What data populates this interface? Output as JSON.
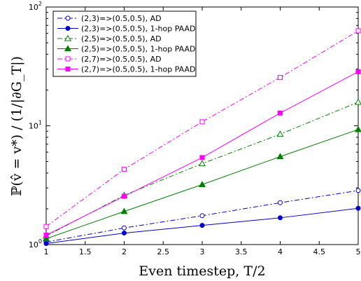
{
  "chart_data": {
    "type": "line",
    "title": "",
    "xlabel": "Even timestep, T/2",
    "ylabel": "ℙ(v̂ = v*)  / (1/|∂G_T|)",
    "xlim": [
      1,
      5
    ],
    "ylim": [
      1,
      100
    ],
    "yscale": "log",
    "grid": false,
    "legend_position": "top-left",
    "x_ticks": [
      "1",
      "1.5",
      "2",
      "2.5",
      "3",
      "3.5",
      "4",
      "4.5",
      "5"
    ],
    "y_tick_labels": [
      {
        "value": 1,
        "base": "10",
        "exp": "0"
      },
      {
        "value": 10,
        "base": "10",
        "exp": "1"
      },
      {
        "value": 100,
        "base": "10",
        "exp": "2"
      }
    ],
    "x": [
      1,
      2,
      3,
      4,
      5
    ],
    "series": [
      {
        "name": "(2,3)=>(0.5,0.5), AD",
        "color": "#0000cc",
        "dash": "dashdot",
        "marker": "circle-open",
        "values": [
          1.05,
          1.38,
          1.75,
          2.25,
          2.85
        ]
      },
      {
        "name": "(2,3)=>(0.5,0.5), 1-hop PAAD",
        "color": "#0000cc",
        "dash": "solid",
        "marker": "circle-filled",
        "values": [
          1.02,
          1.25,
          1.45,
          1.68,
          2.02
        ]
      },
      {
        "name": "(2,5)=>(0.5,0.5), AD",
        "color": "#008000",
        "dash": "dashdot",
        "marker": "triangle-open",
        "values": [
          1.18,
          2.6,
          4.8,
          8.5,
          15.8
        ]
      },
      {
        "name": "(2,5)=>(0.5,0.5), 1-hop PAAD",
        "color": "#008000",
        "dash": "solid",
        "marker": "triangle-filled",
        "values": [
          1.12,
          1.9,
          3.2,
          5.5,
          9.3
        ]
      },
      {
        "name": "(2,7)=>(0.5,0.5), AD",
        "color": "#ff00ff",
        "dash": "dashdot",
        "marker": "square-open",
        "values": [
          1.42,
          4.3,
          10.8,
          25.5,
          63
        ]
      },
      {
        "name": "(2,7)=>(0.5,0.5), 1-hop PAAD",
        "color": "#ff00ff",
        "dash": "solid",
        "marker": "square-filled",
        "values": [
          1.2,
          2.55,
          5.4,
          12.8,
          28.5
        ]
      }
    ]
  }
}
